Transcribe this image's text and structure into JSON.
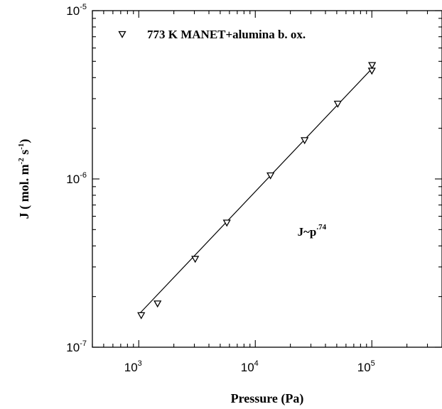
{
  "chart_data": {
    "type": "scatter",
    "xscale": "log",
    "yscale": "log",
    "xlim": [
      400,
      400000
    ],
    "ylim": [
      1e-07,
      1e-05
    ],
    "xlabel": "Pressure (Pa)",
    "ylabel": {
      "prefix": "J ( mol. m",
      "sup1": "-2",
      "middle": " s",
      "sup2": "-1",
      "suffix": ")"
    },
    "x_ticks": [
      {
        "value": 1000,
        "base": "10",
        "exp": "3"
      },
      {
        "value": 10000,
        "base": "10",
        "exp": "4"
      },
      {
        "value": 100000,
        "base": "10",
        "exp": "5"
      }
    ],
    "y_ticks": [
      {
        "value": 1e-07,
        "base": "10",
        "exp": "-7"
      },
      {
        "value": 1e-06,
        "base": "10",
        "exp": "-6"
      },
      {
        "value": 1e-05,
        "base": "10",
        "exp": "-5"
      }
    ],
    "grid": false,
    "legend_position": "top-left",
    "series": [
      {
        "name": "773 K MANET+alumina b. ox.",
        "marker": "triangle-down",
        "points": [
          {
            "x": 1050,
            "y": 1.55e-07
          },
          {
            "x": 1450,
            "y": 1.82e-07
          },
          {
            "x": 3050,
            "y": 3.35e-07
          },
          {
            "x": 5700,
            "y": 5.5e-07
          },
          {
            "x": 13500,
            "y": 1.05e-06
          },
          {
            "x": 26500,
            "y": 1.7e-06
          },
          {
            "x": 51000,
            "y": 2.8e-06
          },
          {
            "x": 100000,
            "y": 4.4e-06
          },
          {
            "x": 100500,
            "y": 4.75e-06
          }
        ]
      }
    ],
    "fit_line": {
      "x": [
        1030,
        101000
      ],
      "y": [
        1.6e-07,
        4.55e-06
      ]
    },
    "annotation": {
      "base": "J~p",
      "exp": ".74",
      "x": 23000,
      "y": 4.6e-07
    }
  }
}
